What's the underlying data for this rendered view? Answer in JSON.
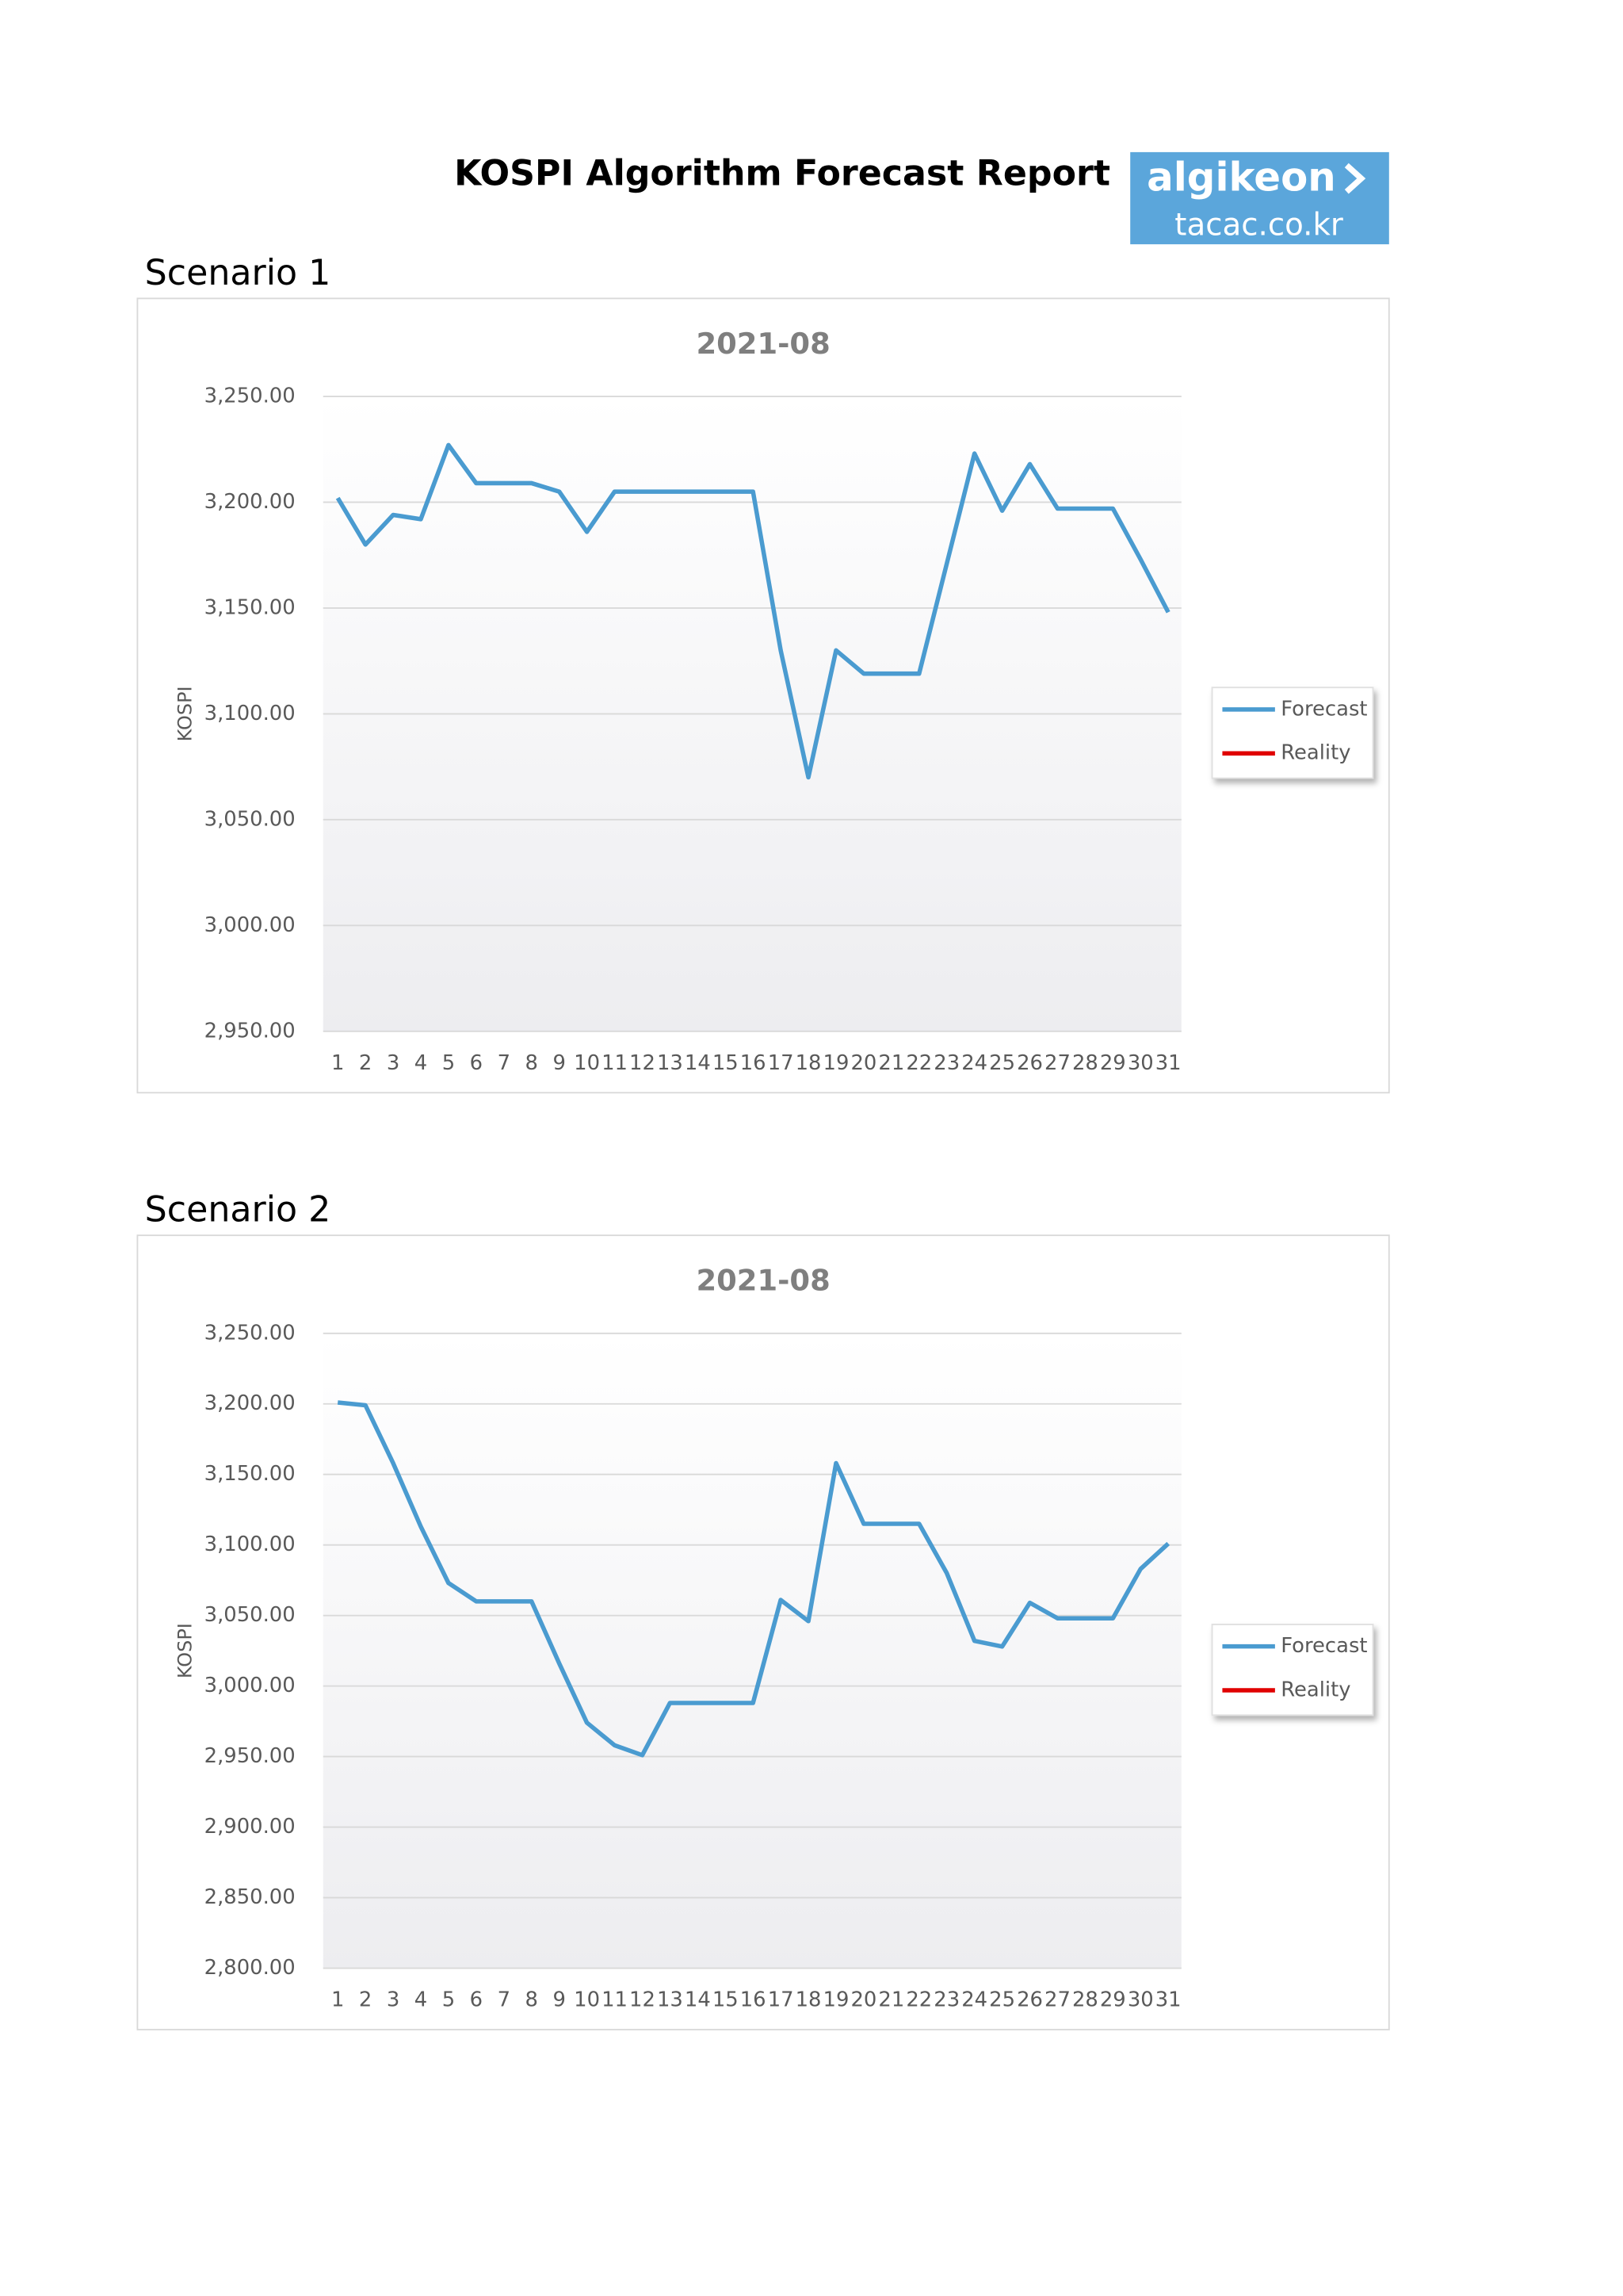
{
  "title": "KOSPI Algorithm Forecast Report",
  "logo": {
    "name": "algikeon",
    "domain": "tacac.co.kr"
  },
  "sections": [
    "Scenario 1",
    "Scenario 2"
  ],
  "chart_data": [
    {
      "type": "line",
      "title": "2021-08",
      "y_label": "KOSPI",
      "categories": [
        "1",
        "2",
        "3",
        "4",
        "5",
        "6",
        "7",
        "8",
        "9",
        "10",
        "11",
        "12",
        "13",
        "14",
        "15",
        "16",
        "17",
        "18",
        "19",
        "20",
        "21",
        "22",
        "23",
        "24",
        "25",
        "26",
        "27",
        "28",
        "29",
        "30",
        "31"
      ],
      "series": [
        {
          "name": "Forecast",
          "color": "#4a9bd0",
          "values": [
            3202,
            3180,
            3194,
            3192,
            3227,
            3209,
            3209,
            3209,
            3205,
            3186,
            3205,
            3205,
            3205,
            3205,
            3205,
            3205,
            3130,
            3070,
            3130,
            3119,
            3119,
            3119,
            3171,
            3223,
            3196,
            3218,
            3197,
            3197,
            3197,
            3173,
            3148
          ]
        },
        {
          "name": "Reality",
          "color": "#e00000",
          "values": [
            null,
            null,
            null,
            null,
            null,
            null,
            null,
            null,
            null,
            null,
            null,
            null,
            null,
            null,
            null,
            null,
            null,
            null,
            null,
            null,
            null,
            null,
            null,
            null,
            null,
            null,
            null,
            null,
            null,
            null,
            null
          ]
        }
      ],
      "ylim": [
        2950,
        3250
      ],
      "yticks": [
        {
          "value": 2950,
          "label": "2,950.00"
        },
        {
          "value": 3000,
          "label": "3,000.00"
        },
        {
          "value": 3050,
          "label": "3,050.00"
        },
        {
          "value": 3100,
          "label": "3,100.00"
        },
        {
          "value": 3150,
          "label": "3,150.00"
        },
        {
          "value": 3200,
          "label": "3,200.00"
        },
        {
          "value": 3250,
          "label": "3,250.00"
        }
      ],
      "grid": true,
      "legend": "right"
    },
    {
      "type": "line",
      "title": "2021-08",
      "y_label": "KOSPI",
      "categories": [
        "1",
        "2",
        "3",
        "4",
        "5",
        "6",
        "7",
        "8",
        "9",
        "10",
        "11",
        "12",
        "13",
        "14",
        "15",
        "16",
        "17",
        "18",
        "19",
        "20",
        "21",
        "22",
        "23",
        "24",
        "25",
        "26",
        "27",
        "28",
        "29",
        "30",
        "31"
      ],
      "series": [
        {
          "name": "Forecast",
          "color": "#4a9bd0",
          "values": [
            3201,
            3199,
            3158,
            3113,
            3073,
            3060,
            3060,
            3060,
            3016,
            2974,
            2958,
            2951,
            2988,
            2988,
            2988,
            2988,
            3061,
            3046,
            3158,
            3115,
            3115,
            3115,
            3080,
            3032,
            3028,
            3059,
            3048,
            3048,
            3048,
            3083,
            3101
          ]
        },
        {
          "name": "Reality",
          "color": "#e00000",
          "values": [
            null,
            null,
            null,
            null,
            null,
            null,
            null,
            null,
            null,
            null,
            null,
            null,
            null,
            null,
            null,
            null,
            null,
            null,
            null,
            null,
            null,
            null,
            null,
            null,
            null,
            null,
            null,
            null,
            null,
            null,
            null
          ]
        }
      ],
      "ylim": [
        2800,
        3250
      ],
      "yticks": [
        {
          "value": 2800,
          "label": "2,800.00"
        },
        {
          "value": 2850,
          "label": "2,850.00"
        },
        {
          "value": 2900,
          "label": "2,900.00"
        },
        {
          "value": 2950,
          "label": "2,950.00"
        },
        {
          "value": 3000,
          "label": "3,000.00"
        },
        {
          "value": 3050,
          "label": "3,050.00"
        },
        {
          "value": 3100,
          "label": "3,100.00"
        },
        {
          "value": 3150,
          "label": "3,150.00"
        },
        {
          "value": 3200,
          "label": "3,200.00"
        },
        {
          "value": 3250,
          "label": "3,250.00"
        }
      ],
      "grid": true,
      "legend": "right"
    }
  ]
}
